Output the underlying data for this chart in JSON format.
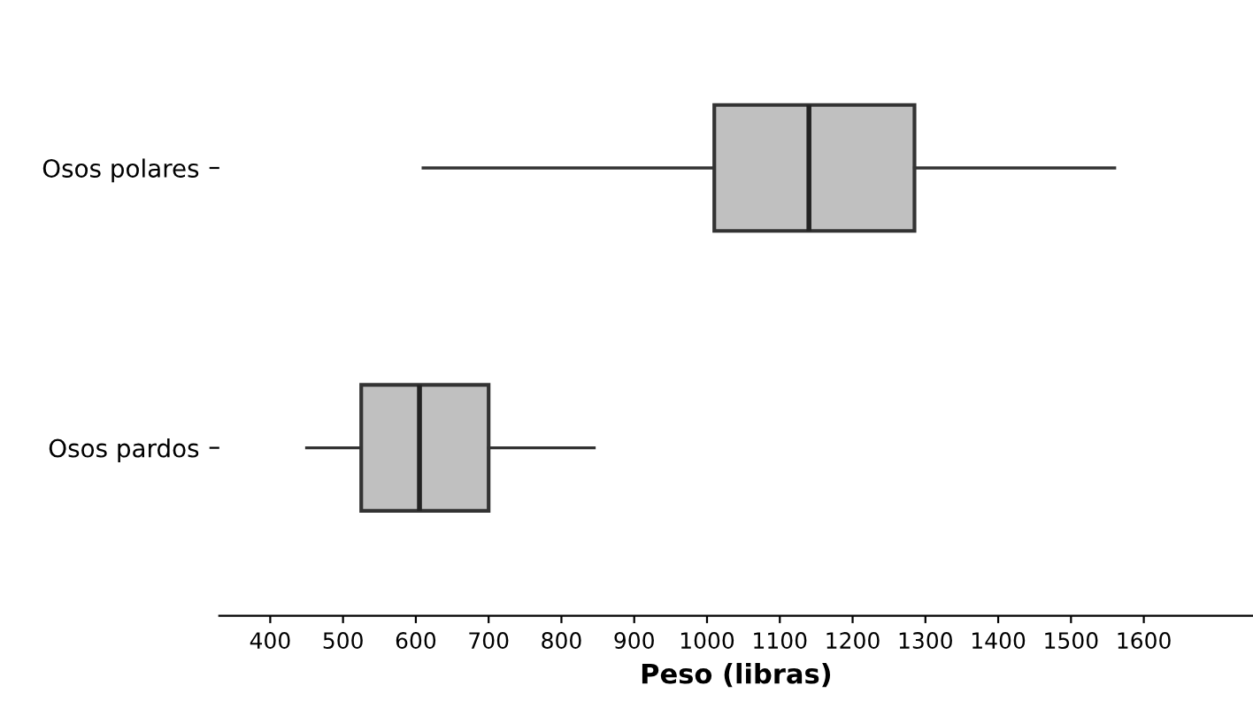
{
  "chart_data": {
    "type": "box",
    "orientation": "horizontal",
    "xlabel": "Peso (libras)",
    "categories": [
      "Osos polares",
      "Osos pardos"
    ],
    "boxes": [
      {
        "low": 610,
        "q1": 1010,
        "median": 1140,
        "q3": 1285,
        "high": 1560
      },
      {
        "low": 450,
        "q1": 525,
        "median": 605,
        "q3": 700,
        "high": 845
      }
    ],
    "color": "#c0c0c0",
    "xlim": [
      330,
      1750
    ],
    "xticks": [
      400,
      500,
      600,
      700,
      800,
      900,
      1000,
      1100,
      1200,
      1300,
      1400,
      1500,
      1600
    ],
    "grid": false
  }
}
